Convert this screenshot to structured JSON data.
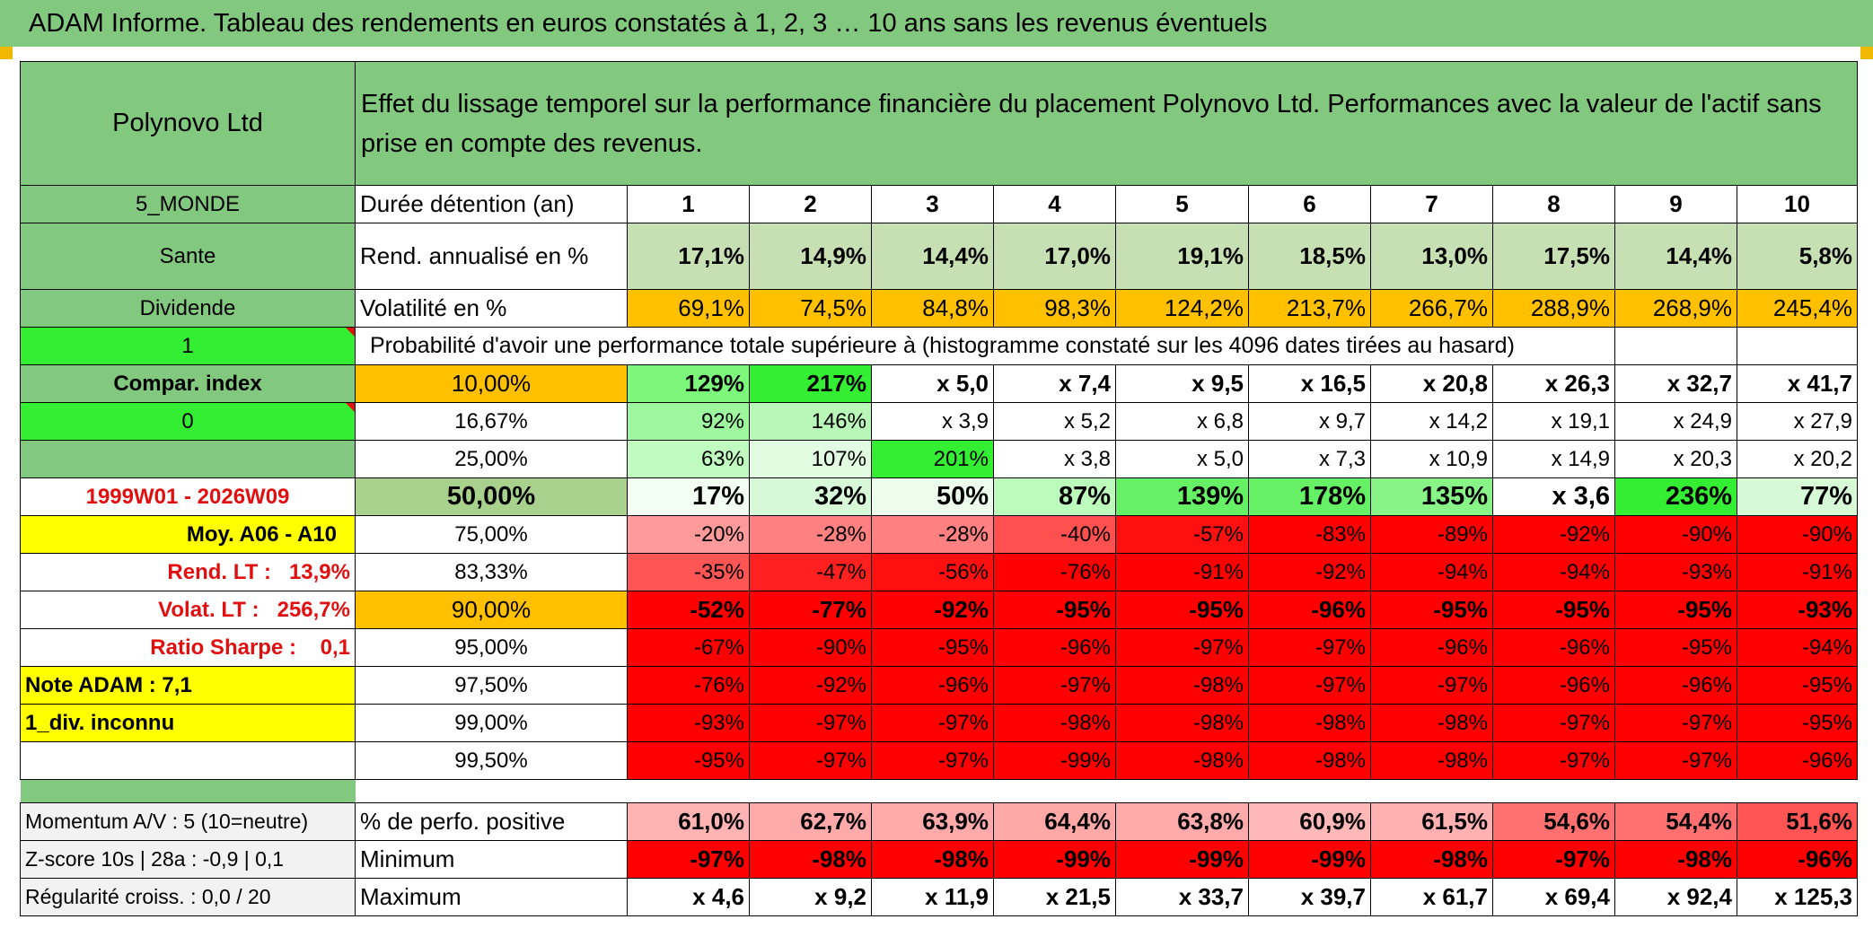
{
  "title": "ADAM Informe. Tableau des rendements en euros constatés à 1, 2, 3 … 10 ans sans les revenus éventuels",
  "header": {
    "asset": "Polynovo Ltd",
    "description": "Effet du lissage temporel sur la performance financière du placement Polynovo Ltd. Performances avec la valeur de l'actif sans prise en compte des revenus."
  },
  "left": {
    "zone": "5_MONDE",
    "sector": "Sante",
    "dividend": "Dividende",
    "one": "1",
    "compar": "Compar. index",
    "zero": "0",
    "period": "1999W01 - 2026W09",
    "moy": "Moy. A06 - A10",
    "rend_lt": "Rend. LT :",
    "rend_lt_value": "13,9%",
    "volat_lt": "Volat. LT :",
    "volat_lt_value": "256,7%",
    "sharpe": "Ratio Sharpe :",
    "sharpe_value": "0,1",
    "note": "Note ADAM : 7,1",
    "div": "1_div. inconnu",
    "momentum": "Momentum A/V : 5 (10=neutre)",
    "zscore": "Z-score 10s | 28a : -0,9 | 0,1",
    "regularite": "Régularité croiss. : 0,0 / 20"
  },
  "stats": {
    "duration_label": "Durée détention (an)",
    "years": [
      "1",
      "2",
      "3",
      "4",
      "5",
      "6",
      "7",
      "8",
      "9",
      "10"
    ],
    "rend_label": "Rend. annualisé en %",
    "rend": [
      "17,1%",
      "14,9%",
      "14,4%",
      "17,0%",
      "19,1%",
      "18,5%",
      "13,0%",
      "17,5%",
      "14,4%",
      "5,8%"
    ],
    "vol_label": "Volatilité en %",
    "vol": [
      "69,1%",
      "74,5%",
      "84,8%",
      "98,3%",
      "124,2%",
      "213,7%",
      "266,7%",
      "288,9%",
      "268,9%",
      "245,4%"
    ],
    "proba_label": "Probabilité d'avoir une performance totale supérieure à (histogramme constaté sur les 4096 dates tirées au hasard)"
  },
  "percentiles": [
    {
      "p": "10,00%",
      "v": [
        "129%",
        "217%",
        "x 5,0",
        "x 7,4",
        "x 9,5",
        "x 16,5",
        "x 20,8",
        "x 26,3",
        "x 32,7",
        "x 41,7"
      ]
    },
    {
      "p": "16,67%",
      "v": [
        "92%",
        "146%",
        "x 3,9",
        "x 5,2",
        "x 6,8",
        "x 9,7",
        "x 14,2",
        "x 19,1",
        "x 24,9",
        "x 27,9"
      ]
    },
    {
      "p": "25,00%",
      "v": [
        "63%",
        "107%",
        "201%",
        "x 3,8",
        "x 5,0",
        "x 7,3",
        "x 10,9",
        "x 14,9",
        "x 20,3",
        "x 20,2"
      ]
    },
    {
      "p": "50,00%",
      "v": [
        "17%",
        "32%",
        "50%",
        "87%",
        "139%",
        "178%",
        "135%",
        "x 3,6",
        "236%",
        "77%"
      ]
    },
    {
      "p": "75,00%",
      "v": [
        "-20%",
        "-28%",
        "-28%",
        "-40%",
        "-57%",
        "-83%",
        "-89%",
        "-92%",
        "-90%",
        "-90%"
      ]
    },
    {
      "p": "83,33%",
      "v": [
        "-35%",
        "-47%",
        "-56%",
        "-76%",
        "-91%",
        "-92%",
        "-94%",
        "-94%",
        "-93%",
        "-91%"
      ]
    },
    {
      "p": "90,00%",
      "v": [
        "-52%",
        "-77%",
        "-92%",
        "-95%",
        "-95%",
        "-96%",
        "-95%",
        "-95%",
        "-95%",
        "-93%"
      ]
    },
    {
      "p": "95,00%",
      "v": [
        "-67%",
        "-90%",
        "-95%",
        "-96%",
        "-97%",
        "-97%",
        "-96%",
        "-96%",
        "-95%",
        "-94%"
      ]
    },
    {
      "p": "97,50%",
      "v": [
        "-76%",
        "-92%",
        "-96%",
        "-97%",
        "-98%",
        "-97%",
        "-97%",
        "-96%",
        "-96%",
        "-95%"
      ]
    },
    {
      "p": "99,00%",
      "v": [
        "-93%",
        "-97%",
        "-97%",
        "-98%",
        "-98%",
        "-98%",
        "-98%",
        "-97%",
        "-97%",
        "-95%"
      ]
    },
    {
      "p": "99,50%",
      "v": [
        "-95%",
        "-97%",
        "-97%",
        "-99%",
        "-98%",
        "-98%",
        "-98%",
        "-97%",
        "-97%",
        "-96%"
      ]
    }
  ],
  "bottom": {
    "positive_label": "% de perfo. positive",
    "positive": [
      "61,0%",
      "62,7%",
      "63,9%",
      "64,4%",
      "63,8%",
      "60,9%",
      "61,5%",
      "54,6%",
      "54,4%",
      "51,6%"
    ],
    "min_label": "Minimum",
    "min": [
      "-97%",
      "-98%",
      "-98%",
      "-99%",
      "-99%",
      "-99%",
      "-98%",
      "-97%",
      "-98%",
      "-96%"
    ],
    "max_label": "Maximum",
    "max": [
      "x 4,6",
      "x 9,2",
      "x 11,9",
      "x 21,5",
      "x 33,7",
      "x 39,7",
      "x 61,7",
      "x 69,4",
      "x 92,4",
      "x 125,3"
    ]
  },
  "colors": {
    "header_green": "#82c87e",
    "light_green": "#c6e0b4",
    "bright_green": "#33ee33",
    "orange": "#ffc000",
    "yellow": "#ffff00",
    "red": "#ff0000",
    "label_red": "#e01010"
  }
}
